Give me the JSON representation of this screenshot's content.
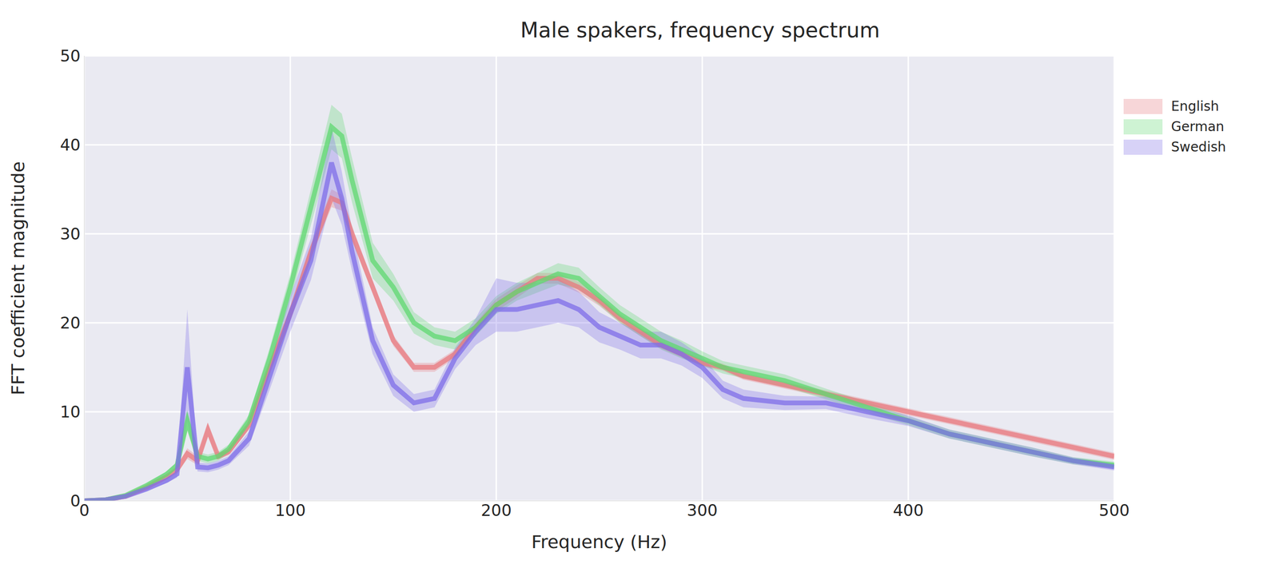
{
  "chart_data": {
    "type": "line",
    "title": "Male spakers, frequency spectrum",
    "x_label": "Frequency (Hz)",
    "y_label": "FFT coefficient magnitude",
    "x": [
      0,
      10,
      20,
      30,
      40,
      45,
      50,
      55,
      60,
      65,
      70,
      80,
      90,
      100,
      110,
      120,
      125,
      130,
      140,
      150,
      160,
      170,
      180,
      190,
      200,
      210,
      220,
      230,
      240,
      250,
      260,
      270,
      280,
      290,
      300,
      310,
      320,
      340,
      360,
      380,
      400,
      420,
      440,
      460,
      480,
      500
    ],
    "series": [
      {
        "name": "English",
        "color": "#e8797f",
        "values": [
          0,
          0.1,
          0.5,
          1.5,
          2.7,
          3.5,
          5.3,
          4.5,
          8,
          5,
          5.5,
          8.5,
          15,
          21,
          28,
          34,
          33.5,
          30,
          24,
          18,
          15,
          15,
          16.5,
          19.5,
          22,
          23.5,
          25,
          25,
          24,
          22.5,
          20.5,
          19,
          17.5,
          16.5,
          15.5,
          15,
          14,
          13,
          12,
          11,
          10,
          9,
          8,
          7,
          6,
          5
        ],
        "lower": [
          0,
          0,
          0.4,
          1.3,
          2.4,
          3.1,
          4.7,
          4,
          7.3,
          4.6,
          5.1,
          8,
          14.3,
          20.2,
          27.2,
          33,
          32.6,
          29.2,
          23.3,
          17.4,
          14.5,
          14.5,
          16,
          19,
          21.3,
          22.8,
          24.4,
          24.4,
          23.4,
          21.9,
          20,
          18.5,
          17.1,
          16.1,
          15.1,
          14.6,
          13.6,
          12.6,
          11.6,
          10.6,
          9.6,
          8.6,
          7.6,
          6.6,
          5.6,
          4.6
        ],
        "upper": [
          0,
          0.2,
          0.6,
          1.7,
          3,
          3.9,
          5.9,
          5,
          8.7,
          5.4,
          5.9,
          9,
          15.7,
          21.8,
          28.8,
          35,
          34.4,
          30.8,
          24.7,
          18.6,
          15.5,
          15.5,
          17,
          20,
          22.7,
          24.2,
          25.6,
          25.6,
          24.6,
          23.1,
          21,
          19.5,
          17.9,
          16.9,
          15.9,
          15.4,
          14.4,
          13.4,
          12.4,
          11.4,
          10.4,
          9.4,
          8.4,
          7.4,
          6.4,
          5.4
        ]
      },
      {
        "name": "German",
        "color": "#5fd870",
        "values": [
          0,
          0.1,
          0.6,
          1.7,
          3,
          4,
          9,
          5,
          4.7,
          5,
          5.8,
          9,
          16,
          24,
          33,
          42,
          41,
          36,
          27,
          24,
          20,
          18.5,
          18,
          19.5,
          22,
          23.5,
          24.5,
          25.5,
          25,
          23,
          21,
          19.5,
          18,
          17,
          16,
          15,
          14.5,
          13.5,
          12,
          10.5,
          9,
          7.5,
          6.5,
          5.5,
          4.5,
          4
        ],
        "lower": [
          0,
          0,
          0.5,
          1.5,
          2.7,
          3.6,
          7.8,
          4.5,
          4.2,
          4.5,
          5.3,
          8.3,
          14.8,
          22.5,
          31,
          39.5,
          38.5,
          33.5,
          25,
          22.5,
          18.8,
          17.5,
          17,
          18.5,
          21,
          22.5,
          23.4,
          24.3,
          23.8,
          22,
          20,
          18.5,
          17,
          16,
          15.2,
          14.3,
          13.8,
          12.8,
          11.4,
          9.9,
          8.5,
          7,
          6,
          5,
          4.1,
          3.6
        ],
        "upper": [
          0,
          0.2,
          0.7,
          1.9,
          3.3,
          4.4,
          10.2,
          5.5,
          5.2,
          5.5,
          6.3,
          9.7,
          17.2,
          25.5,
          35,
          44.5,
          43.5,
          38.5,
          29,
          25.5,
          21.2,
          19.5,
          19,
          20.5,
          23,
          24.5,
          25.6,
          26.7,
          26.2,
          24,
          22,
          20.5,
          19,
          18,
          16.8,
          15.7,
          15.2,
          14.2,
          12.6,
          11.1,
          9.5,
          8,
          7,
          6,
          4.9,
          4.4
        ]
      },
      {
        "name": "Swedish",
        "color": "#7d6ee8",
        "values": [
          0,
          0.1,
          0.5,
          1.3,
          2.3,
          3,
          15,
          3.8,
          3.7,
          4,
          4.5,
          7,
          14,
          21,
          27,
          38,
          34,
          28,
          18,
          13,
          11,
          11.5,
          16,
          19,
          21.5,
          21.5,
          22,
          22.5,
          21.5,
          19.5,
          18.5,
          17.5,
          17.5,
          16.5,
          15,
          12.5,
          11.5,
          11,
          11,
          10,
          9,
          7.5,
          6.5,
          5.5,
          4.5,
          3.8
        ],
        "lower": [
          0,
          0,
          0.4,
          1.1,
          2,
          2.6,
          9,
          3.3,
          3.2,
          3.5,
          4,
          6.2,
          12.5,
          19,
          24.8,
          34,
          31,
          25.8,
          16.5,
          11.8,
          10,
          10.5,
          14.8,
          17.5,
          19,
          19,
          19.5,
          20,
          19.5,
          17.8,
          17,
          16,
          16,
          15.2,
          13.8,
          11.5,
          10.5,
          10.2,
          10.3,
          9.3,
          8.4,
          7,
          6,
          5,
          4.1,
          3.4
        ],
        "upper": [
          0,
          0.2,
          0.6,
          1.5,
          2.6,
          3.4,
          21.5,
          4.3,
          4.2,
          4.5,
          5,
          7.8,
          15.5,
          23,
          29.5,
          42,
          37,
          30.5,
          19.5,
          14.2,
          12,
          12.5,
          17.2,
          20.5,
          25,
          24.5,
          24.5,
          25,
          23.5,
          21.2,
          20,
          19,
          19,
          17.8,
          16.2,
          13.5,
          12.5,
          11.8,
          11.7,
          10.7,
          9.6,
          8,
          7,
          6,
          4.9,
          4.2
        ]
      }
    ],
    "xlim": [
      0,
      500
    ],
    "xticks": [
      0,
      100,
      200,
      300,
      400,
      500
    ],
    "ylim": [
      0,
      50
    ],
    "yticks": [
      0,
      10,
      20,
      30,
      40,
      50
    ],
    "grid": true,
    "legend": "upper right"
  }
}
